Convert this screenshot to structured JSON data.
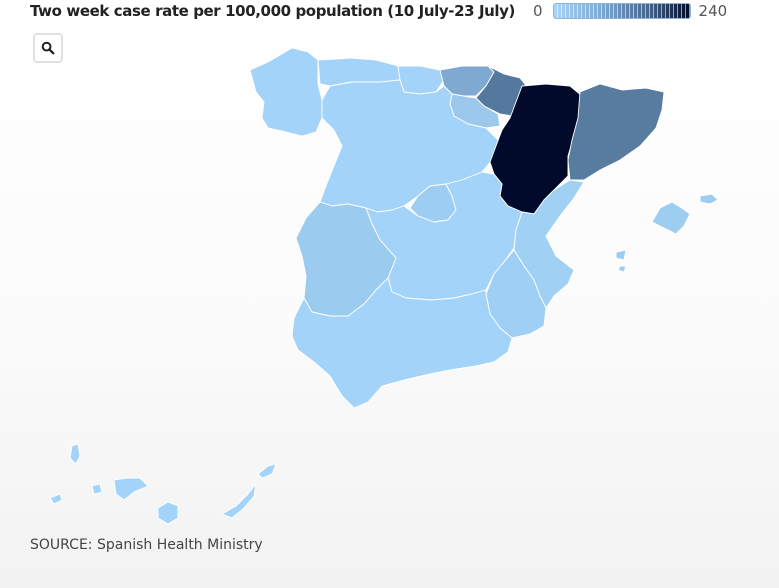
{
  "legend": {
    "title": "Two week case rate per 100,000 population (10 July-23 July)",
    "min_label": "0",
    "max_label": "240",
    "scale_min": 0,
    "scale_max": 240,
    "colors": [
      "#a8d4f7",
      "#7aa9d2",
      "#44638d",
      "#010a2a"
    ]
  },
  "search": {
    "icon": "search-icon"
  },
  "regions": [
    {
      "name": "Galicia",
      "fill": "#a3d3f8"
    },
    {
      "name": "Asturias",
      "fill": "#a3d3f8"
    },
    {
      "name": "Cantabria",
      "fill": "#a3d3f8"
    },
    {
      "name": "Basque Country",
      "fill": "#7fa9d0"
    },
    {
      "name": "Navarre",
      "fill": "#54789e"
    },
    {
      "name": "La Rioja",
      "fill": "#9cc8ec"
    },
    {
      "name": "Castile and Leon",
      "fill": "#a3d3f8"
    },
    {
      "name": "Aragon",
      "fill": "#010a2a"
    },
    {
      "name": "Catalonia",
      "fill": "#587ba0"
    },
    {
      "name": "Madrid",
      "fill": "#9dcdf2"
    },
    {
      "name": "Castile-La Mancha",
      "fill": "#a3d3f8"
    },
    {
      "name": "Extremadura",
      "fill": "#9ccbf0"
    },
    {
      "name": "Valencia",
      "fill": "#a1d0f5"
    },
    {
      "name": "Murcia",
      "fill": "#9fcff4"
    },
    {
      "name": "Andalusia",
      "fill": "#a3d3f8"
    },
    {
      "name": "Balearic Islands",
      "fill": "#9ecdf2"
    },
    {
      "name": "Canary Islands",
      "fill": "#a3d3f8"
    }
  ],
  "source": "SOURCE: Spanish Health Ministry"
}
